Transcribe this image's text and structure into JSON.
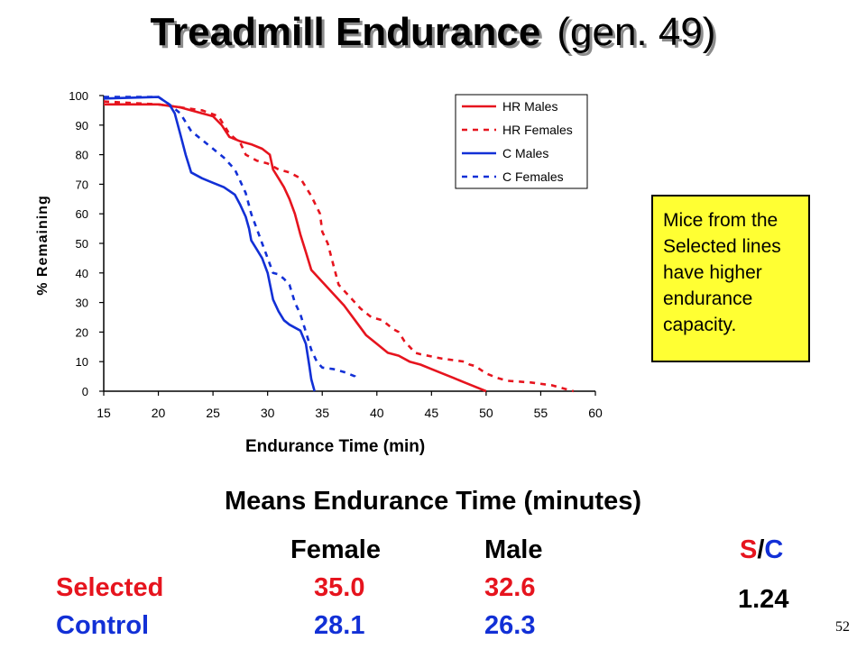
{
  "slide": {
    "title_main": "Treadmill Endurance",
    "title_gen": "(gen. 49)",
    "page_number": "52"
  },
  "callout": {
    "text": "Mice from the\nSelected lines\nhave higher\nendurance\ncapacity.",
    "background": "#ffff33"
  },
  "chart_data": {
    "type": "line",
    "title": "",
    "xlabel": "Endurance Time (min)",
    "ylabel": "% Remaining",
    "xlim": [
      15,
      60
    ],
    "ylim": [
      0,
      100
    ],
    "xticks": [
      15,
      20,
      25,
      30,
      35,
      40,
      45,
      50,
      55,
      60
    ],
    "yticks": [
      0,
      10,
      20,
      30,
      40,
      50,
      60,
      70,
      80,
      90,
      100
    ],
    "grid": false,
    "legend_position": "top-right",
    "series": [
      {
        "name": "HR Males",
        "color": "#e6141e",
        "style": "solid",
        "points": [
          [
            15,
            97
          ],
          [
            20,
            97
          ],
          [
            22,
            96
          ],
          [
            24,
            94
          ],
          [
            25,
            93
          ],
          [
            25.8,
            90
          ],
          [
            26.5,
            86
          ],
          [
            27.5,
            84.5
          ],
          [
            28.5,
            83.5
          ],
          [
            29.5,
            82
          ],
          [
            30.2,
            80
          ],
          [
            30.5,
            75
          ],
          [
            31,
            72
          ],
          [
            31.5,
            69
          ],
          [
            32,
            65
          ],
          [
            32.5,
            60
          ],
          [
            33,
            53
          ],
          [
            33.5,
            47
          ],
          [
            34,
            41
          ],
          [
            35,
            37
          ],
          [
            36,
            33
          ],
          [
            37,
            29
          ],
          [
            38,
            24
          ],
          [
            39,
            19
          ],
          [
            40,
            16
          ],
          [
            41,
            13
          ],
          [
            42,
            12
          ],
          [
            43,
            10
          ],
          [
            44,
            9
          ],
          [
            45,
            7.5
          ],
          [
            46,
            6
          ],
          [
            47,
            4.5
          ],
          [
            48,
            3
          ],
          [
            49,
            1.5
          ],
          [
            50,
            0
          ]
        ]
      },
      {
        "name": "HR Females",
        "color": "#e6141e",
        "style": "dashed",
        "points": [
          [
            15,
            98
          ],
          [
            20,
            97
          ],
          [
            22,
            96
          ],
          [
            24,
            95
          ],
          [
            25.5,
            93
          ],
          [
            26.5,
            87
          ],
          [
            27.5,
            84
          ],
          [
            28,
            80
          ],
          [
            29,
            78
          ],
          [
            30,
            77
          ],
          [
            31,
            75
          ],
          [
            32,
            74
          ],
          [
            33,
            72
          ],
          [
            33.5,
            69
          ],
          [
            34,
            66
          ],
          [
            34.8,
            60
          ],
          [
            35,
            54
          ],
          [
            35.5,
            50
          ],
          [
            36,
            43
          ],
          [
            36.5,
            36
          ],
          [
            37.5,
            32
          ],
          [
            38.5,
            28
          ],
          [
            39.5,
            25
          ],
          [
            40.5,
            24
          ],
          [
            41.5,
            21
          ],
          [
            42,
            20
          ],
          [
            42.5,
            17
          ],
          [
            43.5,
            13
          ],
          [
            44,
            12.5
          ],
          [
            46,
            11
          ],
          [
            48,
            10
          ],
          [
            48.5,
            9
          ],
          [
            49,
            8.5
          ],
          [
            50,
            6
          ],
          [
            51,
            4.5
          ],
          [
            52,
            3.5
          ],
          [
            54,
            3
          ],
          [
            56,
            2
          ],
          [
            58,
            0
          ]
        ]
      },
      {
        "name": "C Males",
        "color": "#1230d6",
        "style": "solid",
        "points": [
          [
            15,
            99
          ],
          [
            20,
            99.5
          ],
          [
            21,
            97
          ],
          [
            21.5,
            94
          ],
          [
            22,
            87
          ],
          [
            22.5,
            80
          ],
          [
            23,
            74
          ],
          [
            24,
            72
          ],
          [
            25,
            70.5
          ],
          [
            26,
            69
          ],
          [
            27,
            66.5
          ],
          [
            27.5,
            63
          ],
          [
            28,
            59
          ],
          [
            28.3,
            55
          ],
          [
            28.5,
            51
          ],
          [
            29,
            48
          ],
          [
            29.5,
            45
          ],
          [
            30,
            40
          ],
          [
            30.5,
            31
          ],
          [
            31,
            27
          ],
          [
            31.5,
            24
          ],
          [
            32,
            22.5
          ],
          [
            33,
            20.5
          ],
          [
            33.5,
            16
          ],
          [
            33.8,
            9
          ],
          [
            34,
            4
          ],
          [
            34.3,
            0
          ]
        ]
      },
      {
        "name": "C Females",
        "color": "#1230d6",
        "style": "dashed",
        "points": [
          [
            15,
            99.5
          ],
          [
            20,
            99.5
          ],
          [
            21,
            97
          ],
          [
            22,
            94
          ],
          [
            23,
            88
          ],
          [
            24,
            85
          ],
          [
            25,
            82
          ],
          [
            26,
            79
          ],
          [
            27,
            75
          ],
          [
            27.5,
            71
          ],
          [
            28,
            67
          ],
          [
            28.5,
            60
          ],
          [
            29,
            55
          ],
          [
            29.5,
            50
          ],
          [
            30,
            45
          ],
          [
            30.5,
            40
          ],
          [
            31,
            39.5
          ],
          [
            31.5,
            38
          ],
          [
            32,
            36
          ],
          [
            32.5,
            30
          ],
          [
            33,
            26
          ],
          [
            33.5,
            20
          ],
          [
            34,
            14
          ],
          [
            34.5,
            10
          ],
          [
            35,
            8
          ],
          [
            36,
            7.5
          ],
          [
            37,
            6.5
          ],
          [
            38,
            5
          ],
          [
            38.3,
            3.5
          ]
        ]
      }
    ]
  },
  "means_table": {
    "title": "Means Endurance Time (minutes)",
    "headers": {
      "female": "Female",
      "male": "Male",
      "ratio": "S/C"
    },
    "rows": [
      {
        "label": "Selected",
        "female": "35.0",
        "male": "32.6",
        "color": "#e6141e"
      },
      {
        "label": "Control",
        "female": "28.1",
        "male": "26.3",
        "color": "#1230d6"
      }
    ],
    "ratio_value": "1.24",
    "ratio_header_colors": [
      "#e6141e",
      "#000000",
      "#1230d6"
    ]
  }
}
